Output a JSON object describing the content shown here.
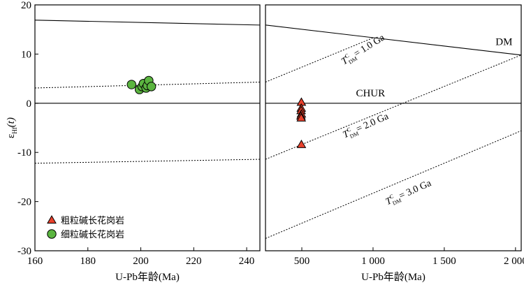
{
  "chart_data": {
    "type": "scatter",
    "yaxis": {
      "label_main": "ε",
      "label_sub": "Hf",
      "label_tail": "(t)",
      "ylim": [
        -30,
        20
      ],
      "ticks": [
        20,
        10,
        0,
        -10,
        -20,
        -30
      ]
    },
    "panels": [
      {
        "id": "left",
        "xlabel": "U-Pb年龄(Ma)",
        "xlim": [
          160,
          245
        ],
        "xticks": [
          {
            "value": 160,
            "label": "160"
          },
          {
            "value": 180,
            "label": "180"
          },
          {
            "value": 200,
            "label": "200"
          },
          {
            "value": 220,
            "label": "220"
          },
          {
            "value": 240,
            "label": "240"
          }
        ],
        "reference_lines": [
          {
            "name": "DM",
            "style": "solid",
            "points": [
              [
                160,
                16.9
              ],
              [
                245,
                15.9
              ]
            ]
          },
          {
            "name": "CHUR",
            "style": "solid",
            "points": [
              [
                160,
                0
              ],
              [
                245,
                0
              ]
            ]
          },
          {
            "name": "T1",
            "style": "dotted",
            "points": [
              [
                160,
                3.1
              ],
              [
                245,
                4.3
              ]
            ]
          },
          {
            "name": "T2",
            "style": "dotted",
            "points": [
              [
                160,
                -12.2
              ],
              [
                245,
                -11.4
              ]
            ]
          }
        ],
        "series": [
          {
            "name": "细粒碱长花岗岩",
            "marker": "circle",
            "color": "#5bb540",
            "points": [
              [
                196.5,
                3.8
              ],
              [
                199.5,
                2.8
              ],
              [
                200.5,
                3.4
              ],
              [
                201,
                4.0
              ],
              [
                202,
                3.1
              ],
              [
                202.5,
                3.6
              ],
              [
                203,
                4.6
              ],
              [
                204,
                3.4
              ]
            ]
          }
        ]
      },
      {
        "id": "right",
        "xlabel": "U-Pb年龄(Ma)",
        "xlim": [
          245,
          2040
        ],
        "xticks": [
          {
            "value": 500,
            "label": "500"
          },
          {
            "value": 1000,
            "label": "1 000"
          },
          {
            "value": 1500,
            "label": "1 500"
          },
          {
            "value": 2000,
            "label": "2 000"
          }
        ],
        "reference_lines": [
          {
            "name": "DM",
            "style": "solid",
            "points": [
              [
                245,
                15.9
              ],
              [
                2040,
                9.8
              ]
            ]
          },
          {
            "name": "CHUR",
            "style": "solid",
            "points": [
              [
                245,
                0
              ],
              [
                2040,
                0
              ]
            ]
          },
          {
            "name": "T1",
            "style": "dotted",
            "points": [
              [
                245,
                4.3
              ],
              [
                1000,
                13.3
              ]
            ]
          },
          {
            "name": "T2",
            "style": "dotted",
            "points": [
              [
                245,
                -11.4
              ],
              [
                2040,
                9.8
              ]
            ]
          },
          {
            "name": "T3",
            "style": "dotted",
            "points": [
              [
                245,
                -27.5
              ],
              [
                2040,
                -5.6
              ]
            ]
          }
        ],
        "series": [
          {
            "name": "粗粒碱长花岗岩",
            "marker": "triangle",
            "color": "#e8412c",
            "points": [
              [
                497,
                0.2
              ],
              [
                496,
                -1.0
              ],
              [
                495,
                -1.5
              ],
              [
                497,
                -2.2
              ],
              [
                494,
                -2.6
              ],
              [
                496,
                -3.0
              ],
              [
                497,
                -8.4
              ]
            ]
          }
        ],
        "annotations": [
          {
            "text": "DM",
            "x": 1860,
            "y": 11.8,
            "rotate": 0
          },
          {
            "text": "CHUR",
            "x": 880,
            "y": 1.4,
            "rotate": 0
          }
        ],
        "tdm_labels": [
          {
            "base": "T",
            "sup": "C",
            "sub": "DM",
            "value": "= 1.0 Ga",
            "x": 795,
            "y": 7.8,
            "rotate": -32
          },
          {
            "base": "T",
            "sup": "C",
            "sub": "DM",
            "value": "= 2.0 Ga",
            "x": 800,
            "y": -7.1,
            "rotate": -24
          },
          {
            "base": "T",
            "sup": "C",
            "sub": "DM",
            "value": "= 3.0 Ga",
            "x": 1100,
            "y": -20.7,
            "rotate": -24
          }
        ]
      }
    ],
    "legend": {
      "placement": "bottom-left",
      "entries": [
        {
          "label": "粗粒碱长花岗岩",
          "marker": "triangle",
          "color": "#e8412c"
        },
        {
          "label": "细粒碱长花岗岩",
          "marker": "circle",
          "color": "#5bb540"
        }
      ]
    }
  }
}
